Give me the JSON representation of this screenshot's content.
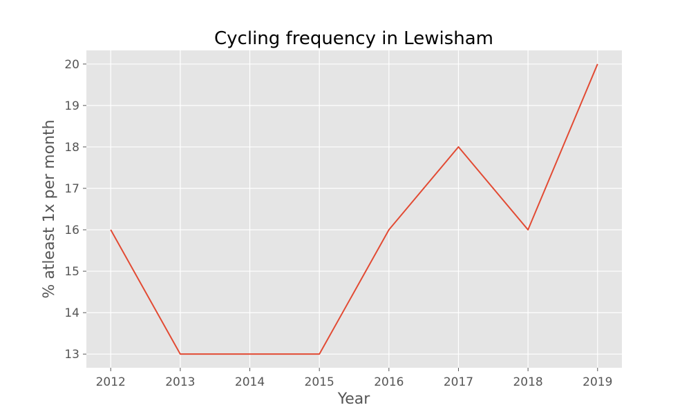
{
  "chart_data": {
    "type": "line",
    "title": "Cycling frequency in Lewisham",
    "xlabel": "Year",
    "ylabel": "% atleast 1x per month",
    "x": [
      2012,
      2013,
      2014,
      2015,
      2016,
      2017,
      2018,
      2019
    ],
    "series": [
      {
        "values": [
          16,
          13,
          13,
          13,
          16,
          18,
          16,
          20
        ]
      }
    ],
    "xlim": [
      2011.65,
      2019.35
    ],
    "ylim": [
      12.67,
      20.33
    ],
    "xticks": [
      2012,
      2013,
      2014,
      2015,
      2016,
      2017,
      2018,
      2019
    ],
    "yticks": [
      13,
      14,
      15,
      16,
      17,
      18,
      19,
      20
    ],
    "grid": true,
    "colors": {
      "plot_background": "#e5e5e5",
      "line": "#e24a33",
      "grid": "#ffffff"
    }
  }
}
